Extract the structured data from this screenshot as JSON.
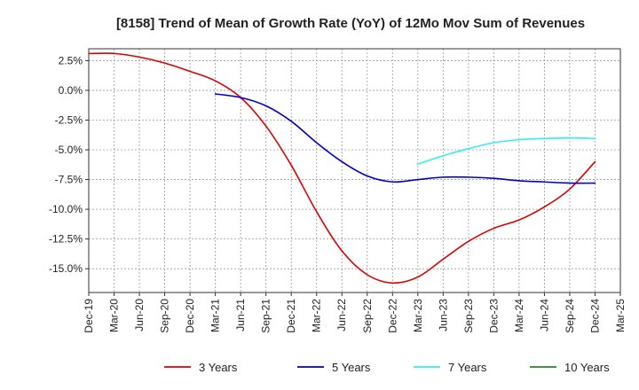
{
  "chart_data": {
    "type": "line",
    "title": "[8158]  Trend of Mean of Growth Rate (YoY) of 12Mo Mov Sum of Revenues",
    "xlabel": "",
    "ylabel": "",
    "x_ticks": [
      "Dec-19",
      "Mar-20",
      "Jun-20",
      "Sep-20",
      "Dec-20",
      "Mar-21",
      "Jun-21",
      "Sep-21",
      "Dec-21",
      "Mar-22",
      "Jun-22",
      "Sep-22",
      "Dec-22",
      "Mar-23",
      "Jun-23",
      "Sep-23",
      "Dec-23",
      "Mar-24",
      "Jun-24",
      "Sep-24",
      "Dec-24",
      "Mar-25"
    ],
    "y_ticks": [
      "2.5%",
      "0.0%",
      "-2.5%",
      "-5.0%",
      "-7.5%",
      "-10.0%",
      "-12.5%",
      "-15.0%"
    ],
    "y_tick_values": [
      2.5,
      0,
      -2.5,
      -5,
      -7.5,
      -10,
      -12.5,
      -15
    ],
    "ylim": [
      -17,
      3.5
    ],
    "grid": true,
    "legend_position": "bottom",
    "series": [
      {
        "name": "3 Years",
        "color": "#dd0000",
        "points": [
          [
            "Dec-19",
            3.1
          ],
          [
            "Mar-20",
            3.1
          ],
          [
            "Jun-20",
            2.8
          ],
          [
            "Sep-20",
            2.3
          ],
          [
            "Dec-20",
            1.6
          ],
          [
            "Mar-21",
            0.8
          ],
          [
            "Jun-21",
            -0.6
          ],
          [
            "Sep-21",
            -3.0
          ],
          [
            "Dec-21",
            -6.3
          ],
          [
            "Mar-22",
            -10.2
          ],
          [
            "Jun-22",
            -13.5
          ],
          [
            "Sep-22",
            -15.5
          ],
          [
            "Dec-22",
            -16.2
          ],
          [
            "Mar-23",
            -15.7
          ],
          [
            "Jun-23",
            -14.2
          ],
          [
            "Sep-23",
            -12.7
          ],
          [
            "Dec-23",
            -11.6
          ],
          [
            "Mar-24",
            -10.9
          ],
          [
            "Jun-24",
            -9.8
          ],
          [
            "Sep-24",
            -8.3
          ],
          [
            "Dec-24",
            -6.0
          ]
        ]
      },
      {
        "name": "5 Years",
        "color": "#0000cc",
        "points": [
          [
            "Mar-21",
            -0.3
          ],
          [
            "Jun-21",
            -0.6
          ],
          [
            "Sep-21",
            -1.3
          ],
          [
            "Dec-21",
            -2.6
          ],
          [
            "Mar-22",
            -4.4
          ],
          [
            "Jun-22",
            -6.0
          ],
          [
            "Sep-22",
            -7.2
          ],
          [
            "Dec-22",
            -7.7
          ],
          [
            "Mar-23",
            -7.5
          ],
          [
            "Jun-23",
            -7.3
          ],
          [
            "Sep-23",
            -7.3
          ],
          [
            "Dec-23",
            -7.4
          ],
          [
            "Mar-24",
            -7.6
          ],
          [
            "Jun-24",
            -7.7
          ],
          [
            "Sep-24",
            -7.8
          ],
          [
            "Dec-24",
            -7.8
          ]
        ]
      },
      {
        "name": "7 Years",
        "color": "#33eeee",
        "points": [
          [
            "Mar-23",
            -6.2
          ],
          [
            "Jun-23",
            -5.5
          ],
          [
            "Sep-23",
            -4.9
          ],
          [
            "Dec-23",
            -4.4
          ],
          [
            "Mar-24",
            -4.15
          ],
          [
            "Jun-24",
            -4.05
          ],
          [
            "Sep-24",
            -4.0
          ],
          [
            "Dec-24",
            -4.05
          ]
        ]
      },
      {
        "name": "10 Years",
        "color": "#228822",
        "points": []
      }
    ]
  }
}
